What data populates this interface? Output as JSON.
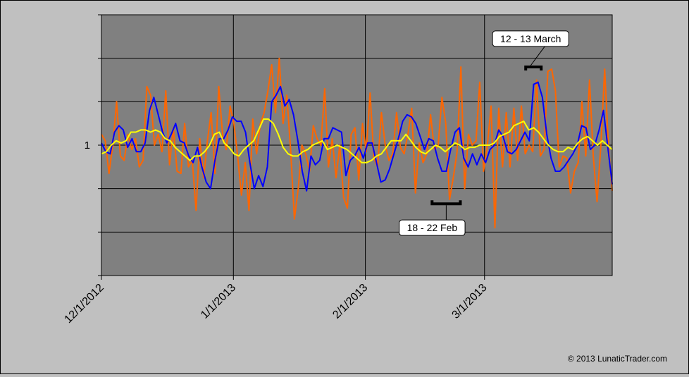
{
  "chart_data": {
    "type": "line",
    "x_ticks": [
      "12/1/2012",
      "1/1/2013",
      "2/1/2013",
      "3/1/2013"
    ],
    "x_range": [
      "2012-12-01",
      "2013-03-31"
    ],
    "y_tick_label": "1",
    "y_tick_value": 1,
    "ylim": [
      0.4,
      1.6
    ],
    "grid": true,
    "legend": "none",
    "series": [
      {
        "color": "#ff6600",
        "values": [
          1.05,
          1.02,
          0.87,
          1.0,
          1.2,
          0.95,
          0.93,
          1.05,
          0.98,
          1.03,
          0.9,
          0.93,
          1.27,
          1.23,
          1.0,
          1.05,
          0.97,
          1.25,
          0.91,
          1.08,
          0.88,
          0.87,
          1.1,
          0.9,
          0.93,
          0.7,
          1.03,
          0.85,
          1.02,
          1.15,
          0.87,
          1.27,
          1.05,
          0.98,
          1.18,
          1.1,
          0.95,
          0.77,
          0.92,
          0.7,
          1.12,
          0.96,
          1.1,
          1.15,
          1.25,
          1.37,
          1.15,
          1.4,
          1.1,
          1.23,
          0.98,
          0.66,
          0.8,
          1.0,
          0.96,
          0.88,
          1.09,
          1.03,
          1.0,
          1.26,
          0.9,
          1.03,
          0.85,
          1.0,
          0.76,
          0.71,
          1.05,
          1.08,
          0.84,
          1.1,
          0.97,
          1.24,
          0.94,
          0.9,
          1.15,
          1.0,
          0.93,
          0.96,
          1.15,
          0.99,
          0.96,
          1.05,
          1.17,
          0.78,
          1.01,
          0.92,
          0.96,
          1.14,
          0.98,
          1.0,
          1.22,
          1.1,
          0.75,
          0.85,
          0.97,
          1.36,
          0.8,
          1.05,
          1.0,
          1.02,
          1.29,
          0.88,
          1.0,
          1.18,
          0.62,
          1.17,
          0.9,
          1.15,
          0.9,
          1.17,
          0.93,
          1.18,
          0.96,
          1.0,
          0.97,
          1.3,
          0.95,
          0.98,
          1.34,
          1.35,
          1.25,
          0.9,
          0.95,
          0.94,
          0.78,
          0.88,
          0.92,
          1.2,
          0.95,
          1.3,
          0.95,
          0.74,
          1.0,
          1.35,
          1.0,
          0.79
        ]
      },
      {
        "color": "#0000ff",
        "values": [
          1.01,
          0.97,
          0.96,
          1.06,
          1.09,
          1.07,
          0.99,
          1.03,
          0.97,
          0.97,
          1.01,
          1.16,
          1.22,
          1.14,
          1.06,
          1.01,
          1.05,
          1.1,
          1.02,
          1.01,
          0.95,
          0.92,
          0.99,
          0.9,
          0.83,
          0.8,
          0.93,
          1.03,
          1.03,
          1.07,
          1.13,
          1.11,
          1.11,
          1.06,
          0.92,
          0.8,
          0.86,
          0.81,
          0.9,
          1.2,
          1.23,
          1.27,
          1.18,
          1.21,
          1.14,
          1.02,
          0.88,
          0.79,
          0.95,
          0.91,
          0.93,
          1.03,
          1.03,
          1.08,
          1.07,
          1.06,
          0.86,
          0.93,
          0.95,
          0.99,
          0.94,
          1.01,
          1.01,
          0.92,
          0.83,
          0.84,
          0.89,
          0.96,
          1.03,
          1.11,
          1.14,
          1.13,
          1.1,
          1.04,
          0.98,
          1.03,
          1.02,
          0.94,
          0.88,
          0.88,
          0.98,
          1.06,
          1.08,
          0.94,
          0.9,
          0.96,
          0.91,
          0.96,
          0.92,
          0.98,
          1.0,
          1.07,
          1.04,
          0.97,
          0.96,
          0.98,
          1.02,
          1.06,
          1.02,
          1.28,
          1.29,
          1.22,
          1.05,
          0.94,
          0.88,
          0.88,
          0.9,
          0.93,
          0.96,
          1.0,
          1.09,
          1.08,
          0.98,
          1.0,
          1.07,
          1.16,
          0.99,
          0.82
        ]
      },
      {
        "color": "#ffff00",
        "values": [
          0.96,
          0.97,
          1.0,
          1.02,
          1.01,
          1.02,
          1.06,
          1.06,
          1.07,
          1.07,
          1.06,
          1.07,
          1.06,
          1.03,
          1.02,
          0.99,
          0.97,
          0.95,
          0.93,
          0.95,
          0.95,
          0.97,
          1.0,
          1.05,
          1.06,
          1.01,
          0.99,
          0.96,
          0.95,
          0.98,
          1.0,
          1.02,
          1.07,
          1.12,
          1.12,
          1.1,
          1.05,
          0.99,
          0.96,
          0.95,
          0.95,
          0.97,
          0.98,
          1.0,
          1.01,
          1.02,
          0.98,
          0.99,
          1.0,
          0.99,
          0.98,
          0.96,
          0.94,
          0.92,
          0.92,
          0.93,
          0.95,
          0.96,
          0.99,
          1.02,
          1.02,
          1.02,
          1.05,
          1.02,
          0.99,
          0.97,
          0.96,
          0.98,
          1.0,
          0.99,
          0.97,
          0.99,
          1.01,
          1.0,
          0.98,
          0.99,
          0.99,
          1.0,
          1.0,
          1.0,
          1.01,
          1.04,
          1.05,
          1.06,
          1.09,
          1.1,
          1.11,
          1.07,
          1.08,
          1.06,
          1.03,
          1.0,
          0.98,
          0.97,
          0.97,
          0.99,
          0.98,
          1.01,
          1.03,
          1.04,
          1.02,
          1.0,
          1.02,
          1.0,
          0.98
        ]
      }
    ],
    "annotations": [
      {
        "text": "12 - 13 March",
        "bracket": [
          "2013-03-12",
          "2013-03-13"
        ],
        "bracket_y": 1.36,
        "label_y": 1.49
      },
      {
        "text": "18 - 22 Feb",
        "bracket": [
          "2013-02-18",
          "2013-02-22"
        ],
        "bracket_y": 0.73,
        "label_y": 0.62
      }
    ]
  },
  "copyright": "© 2013 LunaticTrader.com"
}
